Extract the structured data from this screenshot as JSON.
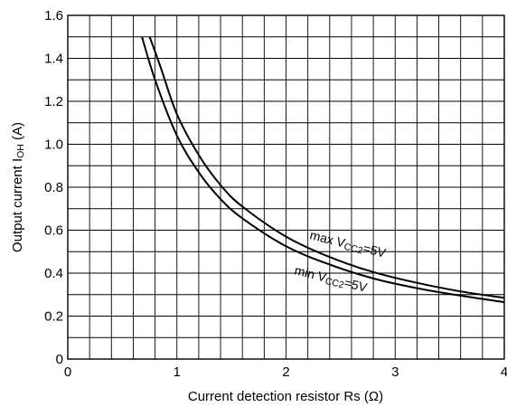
{
  "chart_data": {
    "type": "line",
    "xlabel": "Current detection resistor Rs (Ω)",
    "ylabel_main": "Output current I",
    "ylabel_sub": "OH",
    "ylabel_unit": " (A)",
    "xlim": [
      0,
      4
    ],
    "ylim": [
      0,
      1.6
    ],
    "x_minor_step": 0.2,
    "y_minor_step": 0.1,
    "grid": true,
    "x_ticks": [
      {
        "value": 0,
        "label": "0"
      },
      {
        "value": 1,
        "label": "1"
      },
      {
        "value": 2,
        "label": "2"
      },
      {
        "value": 3,
        "label": "3"
      },
      {
        "value": 4,
        "label": "4"
      }
    ],
    "y_ticks": [
      {
        "value": 0,
        "label": "0"
      },
      {
        "value": 0.2,
        "label": "0.2"
      },
      {
        "value": 0.4,
        "label": "0.4"
      },
      {
        "value": 0.6,
        "label": "0.6"
      },
      {
        "value": 0.8,
        "label": "0.8"
      },
      {
        "value": 1.0,
        "label": "1.0"
      },
      {
        "value": 1.2,
        "label": "1.2"
      },
      {
        "value": 1.4,
        "label": "1.4"
      },
      {
        "value": 1.6,
        "label": "1.6"
      }
    ],
    "series": [
      {
        "annotation": {
          "prefix": "max V",
          "sub": "CC2",
          "suffix": "=5V"
        },
        "x": [
          0.75,
          0.85,
          1.0,
          1.2,
          1.4,
          1.6,
          2.0,
          2.4,
          2.8,
          3.2,
          3.6,
          4.0
        ],
        "y": [
          1.5,
          1.36,
          1.14,
          0.95,
          0.81,
          0.71,
          0.57,
          0.475,
          0.405,
          0.355,
          0.315,
          0.285
        ]
      },
      {
        "annotation": {
          "prefix": "min V",
          "sub": "CC2",
          "suffix": "=5V"
        },
        "x": [
          0.68,
          0.8,
          1.0,
          1.2,
          1.4,
          1.6,
          2.0,
          2.4,
          2.8,
          3.2,
          3.6,
          4.0
        ],
        "y": [
          1.5,
          1.3,
          1.04,
          0.87,
          0.745,
          0.655,
          0.525,
          0.44,
          0.375,
          0.33,
          0.295,
          0.265
        ]
      }
    ]
  }
}
